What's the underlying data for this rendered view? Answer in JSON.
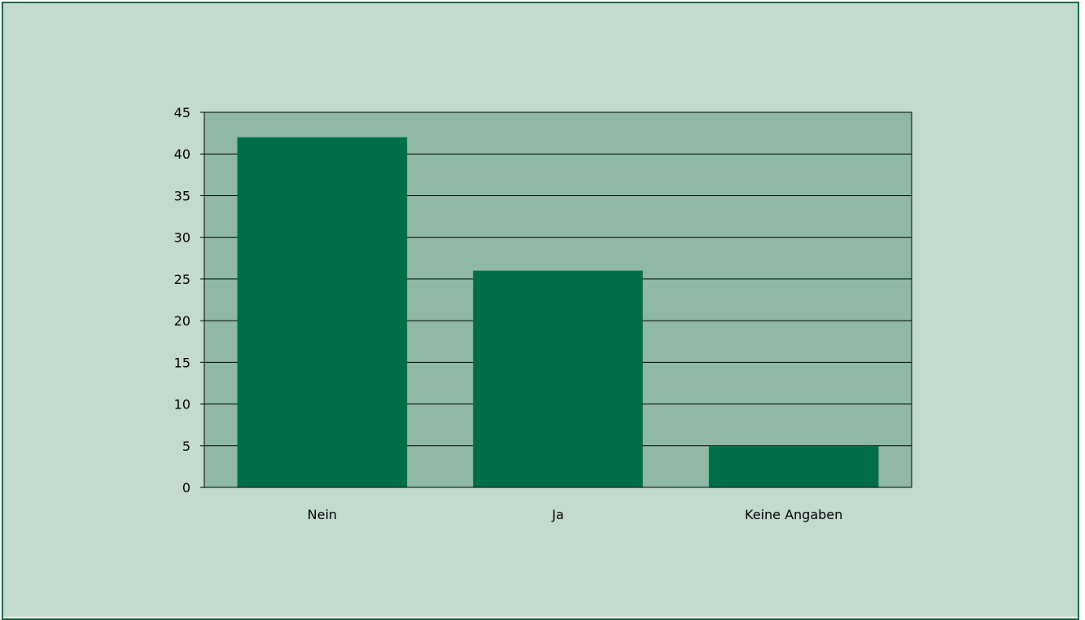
{
  "chart_data": {
    "type": "bar",
    "categories": [
      "Nein",
      "Ja",
      "Keine Angaben"
    ],
    "values": [
      42,
      26,
      5
    ],
    "ylim": [
      0,
      45
    ],
    "yticks": [
      0,
      5,
      10,
      15,
      20,
      25,
      30,
      35,
      40,
      45
    ],
    "grid": true,
    "legend": "none"
  },
  "colors": {
    "page_background": "#c3dacf",
    "plot_background": "#8fb9a5",
    "bar": "#006e48",
    "frame_border": "#1c6a45",
    "gridline": "#000000"
  }
}
